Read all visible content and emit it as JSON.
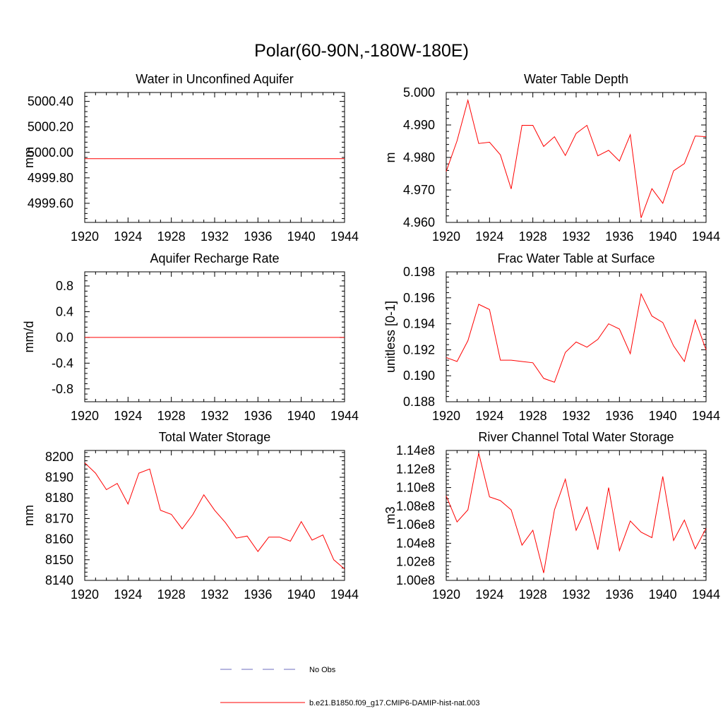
{
  "title": "Polar(60-90N,-180W-180E)",
  "line_color": "#ff0000",
  "obs_color": "#6b6bbf",
  "legend": {
    "obs_label": "No Obs",
    "model_label": "b.e21.B1850.f09_g17.CMIP6-DAMIP-hist-nat.003"
  },
  "chart_data": [
    {
      "type": "line",
      "title": "Water in Unconfined Aquifer",
      "ylabel": "mm",
      "xlim": [
        1920,
        1944
      ],
      "ylim": [
        4999.45,
        5000.47
      ],
      "yticks": [
        4999.6,
        4999.8,
        5000.0,
        5000.2,
        5000.4
      ],
      "ytick_labels": [
        "4999.60",
        "4999.80",
        "5000.00",
        "5000.20",
        "5000.40"
      ],
      "xticks": [
        1920,
        1924,
        1928,
        1932,
        1936,
        1940,
        1944
      ],
      "x": [
        1920,
        1944
      ],
      "series": [
        {
          "name": "b.e21.B1850.f09_g17.CMIP6-DAMIP-hist-nat.003",
          "values": [
            4999.95,
            4999.95
          ]
        }
      ]
    },
    {
      "type": "line",
      "title": "Water Table Depth",
      "ylabel": "m",
      "xlim": [
        1920,
        1944
      ],
      "ylim": [
        4.96,
        5.0
      ],
      "yticks": [
        4.96,
        4.97,
        4.98,
        4.99,
        5.0
      ],
      "ytick_labels": [
        "4.960",
        "4.970",
        "4.980",
        "4.990",
        "5.000"
      ],
      "xticks": [
        1920,
        1924,
        1928,
        1932,
        1936,
        1940,
        1944
      ],
      "x": [
        1920,
        1921,
        1922,
        1923,
        1924,
        1925,
        1926,
        1927,
        1928,
        1929,
        1930,
        1931,
        1932,
        1933,
        1934,
        1935,
        1936,
        1937,
        1938,
        1939,
        1940,
        1941,
        1942,
        1943,
        1944
      ],
      "series": [
        {
          "name": "b.e21.B1850.f09_g17.CMIP6-DAMIP-hist-nat.003",
          "values": [
            4.9757,
            4.9851,
            4.9976,
            4.9843,
            4.9847,
            4.9808,
            4.9703,
            4.9899,
            4.9899,
            4.9834,
            4.9864,
            4.9806,
            4.9874,
            4.9899,
            4.9805,
            4.9822,
            4.9789,
            4.987,
            4.9614,
            4.9704,
            4.9659,
            4.9759,
            4.9781,
            4.9866,
            4.9864
          ]
        }
      ]
    },
    {
      "type": "line",
      "title": "Aquifer Recharge Rate",
      "ylabel": "mm/d",
      "xlim": [
        1920,
        1944
      ],
      "ylim": [
        -1.0,
        1.02
      ],
      "yticks": [
        -0.8,
        -0.4,
        0.0,
        0.4,
        0.8
      ],
      "ytick_labels": [
        "-0.8",
        "-0.4",
        "0.0",
        "0.4",
        "0.8"
      ],
      "xticks": [
        1920,
        1924,
        1928,
        1932,
        1936,
        1940,
        1944
      ],
      "x": [
        1920,
        1944
      ],
      "series": [
        {
          "name": "b.e21.B1850.f09_g17.CMIP6-DAMIP-hist-nat.003",
          "values": [
            0.0,
            0.0
          ]
        }
      ]
    },
    {
      "type": "line",
      "title": "Frac Water Table at Surface",
      "ylabel": "unitless [0-1]",
      "xlim": [
        1920,
        1944
      ],
      "ylim": [
        0.188,
        0.198
      ],
      "yticks": [
        0.188,
        0.19,
        0.192,
        0.194,
        0.196,
        0.198
      ],
      "ytick_labels": [
        "0.188",
        "0.190",
        "0.192",
        "0.194",
        "0.196",
        "0.198"
      ],
      "xticks": [
        1920,
        1924,
        1928,
        1932,
        1936,
        1940,
        1944
      ],
      "x": [
        1920,
        1921,
        1922,
        1923,
        1924,
        1925,
        1926,
        1927,
        1928,
        1929,
        1930,
        1931,
        1932,
        1933,
        1934,
        1935,
        1936,
        1937,
        1938,
        1939,
        1940,
        1941,
        1942,
        1943,
        1944
      ],
      "series": [
        {
          "name": "b.e21.B1850.f09_g17.CMIP6-DAMIP-hist-nat.003",
          "values": [
            0.1914,
            0.1911,
            0.1927,
            0.1955,
            0.1951,
            0.1912,
            0.1912,
            0.1911,
            0.191,
            0.1898,
            0.1895,
            0.1918,
            0.1926,
            0.1922,
            0.1928,
            0.194,
            0.1936,
            0.1917,
            0.1963,
            0.1946,
            0.1941,
            0.1923,
            0.1911,
            0.1943,
            0.192
          ]
        }
      ]
    },
    {
      "type": "line",
      "title": "Total Water Storage",
      "ylabel": "mm",
      "xlim": [
        1920,
        1944
      ],
      "ylim": [
        8140,
        8203
      ],
      "yticks": [
        8140,
        8150,
        8160,
        8170,
        8180,
        8190,
        8200
      ],
      "ytick_labels": [
        "8140",
        "8150",
        "8160",
        "8170",
        "8180",
        "8190",
        "8200"
      ],
      "xticks": [
        1920,
        1924,
        1928,
        1932,
        1936,
        1940,
        1944
      ],
      "x": [
        1920,
        1921,
        1922,
        1923,
        1924,
        1925,
        1926,
        1927,
        1928,
        1929,
        1930,
        1931,
        1932,
        1933,
        1934,
        1935,
        1936,
        1937,
        1938,
        1939,
        1940,
        1941,
        1942,
        1943,
        1944
      ],
      "series": [
        {
          "name": "b.e21.B1850.f09_g17.CMIP6-DAMIP-hist-nat.003",
          "values": [
            8197,
            8192,
            8184,
            8187,
            8177,
            8192,
            8194,
            8174,
            8172,
            8165,
            8172,
            8181.5,
            8174,
            8168,
            8160.5,
            8161.5,
            8154,
            8161,
            8161,
            8159,
            8168.5,
            8159.5,
            8162,
            8150,
            8145.5
          ]
        }
      ]
    },
    {
      "type": "line",
      "title": "River Channel Total Water Storage",
      "ylabel": "m3",
      "xlim": [
        1920,
        1944
      ],
      "ylim": [
        100000000,
        114000000
      ],
      "yticks": [
        100000000,
        102000000,
        104000000,
        106000000,
        108000000,
        110000000,
        112000000,
        114000000
      ],
      "ytick_labels": [
        "1.00e8",
        "1.02e8",
        "1.04e8",
        "1.06e8",
        "1.08e8",
        "1.10e8",
        "1.12e8",
        "1.14e8"
      ],
      "xticks": [
        1920,
        1924,
        1928,
        1932,
        1936,
        1940,
        1944
      ],
      "x": [
        1920,
        1921,
        1922,
        1923,
        1924,
        1925,
        1926,
        1927,
        1928,
        1929,
        1930,
        1931,
        1932,
        1933,
        1934,
        1935,
        1936,
        1937,
        1938,
        1939,
        1940,
        1941,
        1942,
        1943,
        1944
      ],
      "series": [
        {
          "name": "b.e21.B1850.f09_g17.CMIP6-DAMIP-hist-nat.003",
          "values": [
            109100000,
            106300000,
            107600000,
            113700000,
            109000000,
            108600000,
            107600000,
            103800000,
            105400000,
            100800000,
            107600000,
            110900000,
            105400000,
            107900000,
            103300000,
            110000000,
            103200000,
            106400000,
            105200000,
            104600000,
            111200000,
            104300000,
            106500000,
            103400000,
            105600000
          ]
        }
      ]
    }
  ]
}
